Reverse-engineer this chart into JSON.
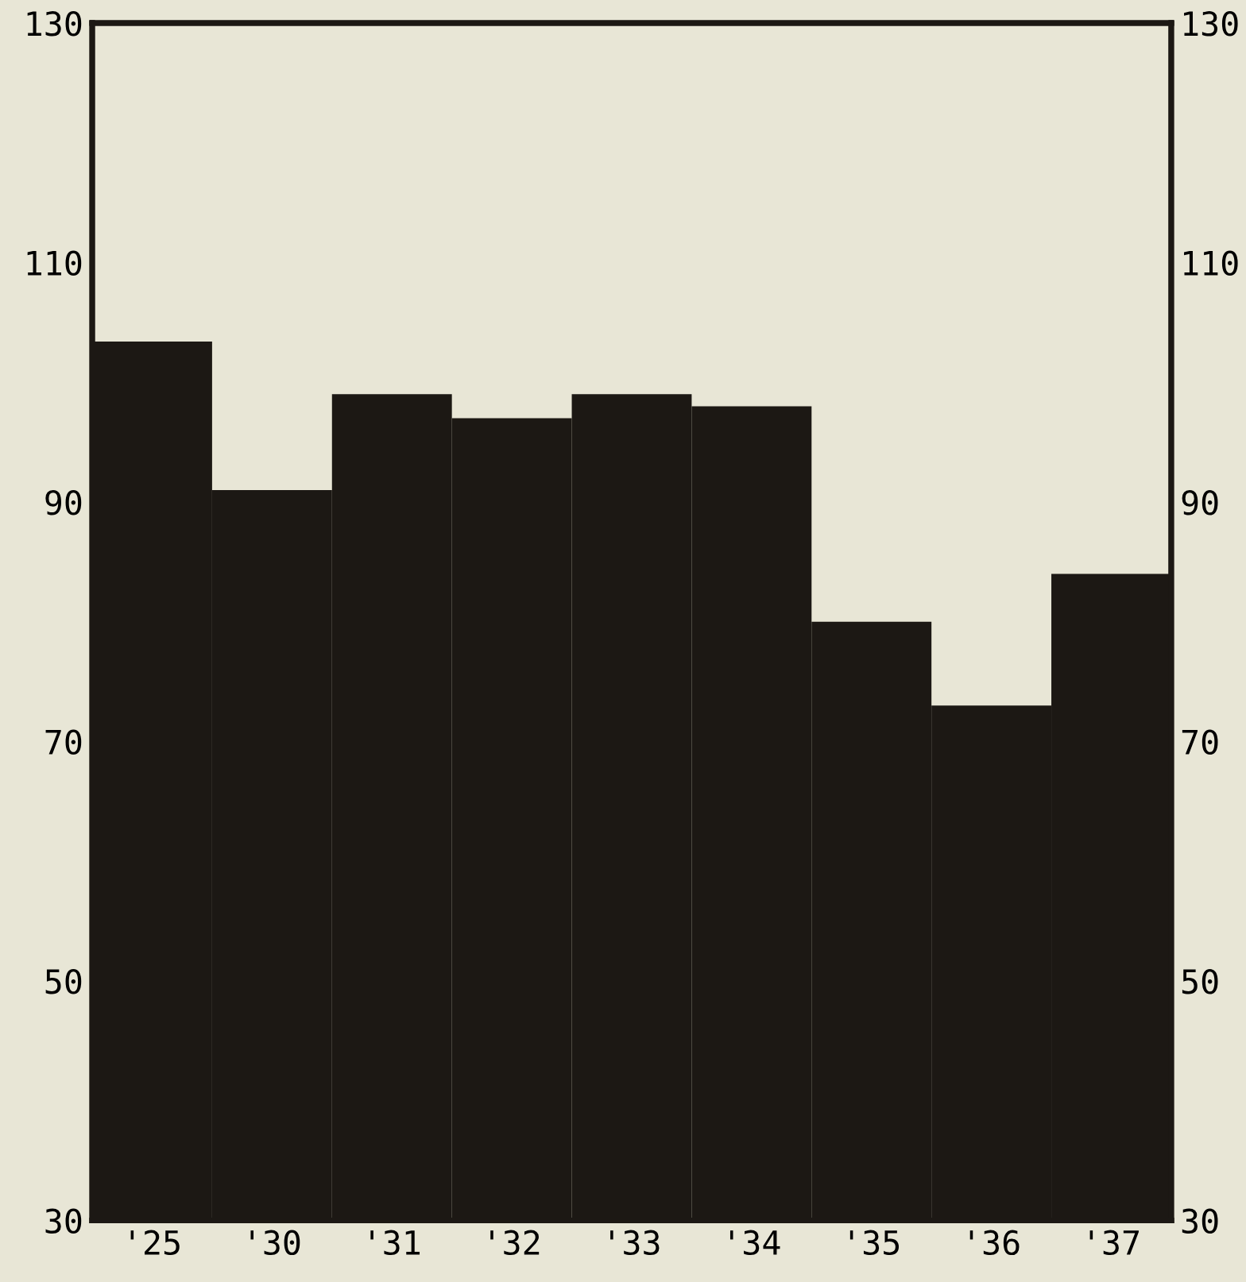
{
  "chart_data": {
    "type": "bar",
    "categories": [
      "'25",
      "'30",
      "'31",
      "'32",
      "'33",
      "'34",
      "'35",
      "'36",
      "'37"
    ],
    "values": [
      103.4,
      91,
      99,
      97,
      99,
      98,
      80,
      73,
      84
    ],
    "color": "#1c1814",
    "ylim": [
      30,
      130
    ],
    "yticks": [
      30,
      50,
      70,
      90,
      110,
      130
    ],
    "y2lim": [
      30,
      130
    ],
    "y2ticks": [
      30,
      50,
      70,
      90,
      110,
      130
    ],
    "grid": false
  }
}
